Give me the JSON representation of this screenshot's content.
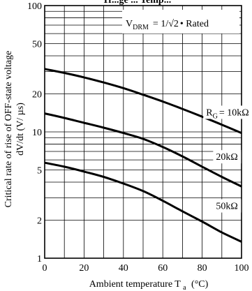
{
  "chart_data": {
    "type": "line",
    "title": "Tr...ge ... Temp...",
    "xlabel": {
      "prefix": "Ambient temperature T",
      "sub": "a",
      "suffix": "(°C)"
    },
    "ylabel": {
      "line1": "Critical rate of rise of OFF-state voltage",
      "line2": "dV/dt   (V/ µs)"
    },
    "xlim": [
      0,
      100
    ],
    "ylim": [
      1,
      100
    ],
    "yscale": "log",
    "x_ticks": [
      "0",
      "20",
      "40",
      "60",
      "80",
      "100"
    ],
    "y_ticks": [
      {
        "value": 1,
        "label": "1"
      },
      {
        "value": 2,
        "label": "2"
      },
      {
        "value": 5,
        "label": "5"
      },
      {
        "value": 10,
        "label": "10"
      },
      {
        "value": 20,
        "label": "20"
      },
      {
        "value": 50,
        "label": "50"
      },
      {
        "value": 100,
        "label": "100"
      }
    ],
    "condition": {
      "prefix": "V",
      "sub": "DRM",
      "middle": "=  1/",
      "radical": "√2",
      "suffix": "• Rated"
    },
    "series": [
      {
        "name": "R_G = 10kΩ",
        "label": {
          "prefix": "R",
          "sub": "G",
          "suffix": "= 10kΩ",
          "at": [
            82,
            13.5
          ]
        },
        "x": [
          0,
          10,
          20,
          30,
          40,
          50,
          60,
          70,
          80,
          90,
          100
        ],
        "values": [
          31.5,
          29.3,
          27.0,
          24.6,
          22.2,
          19.7,
          17.4,
          15.2,
          13.2,
          11.4,
          9.8
        ]
      },
      {
        "name": "20kΩ",
        "label": {
          "prefix": "20kΩ",
          "at": [
            87,
            6.0
          ]
        },
        "x": [
          0,
          10,
          20,
          30,
          40,
          50,
          60,
          70,
          80,
          90,
          100
        ],
        "values": [
          14.0,
          12.9,
          11.8,
          10.8,
          9.8,
          8.8,
          7.6,
          6.4,
          5.3,
          4.4,
          3.7
        ]
      },
      {
        "name": "50kΩ",
        "label": {
          "prefix": "50kΩ",
          "at": [
            87,
            2.45
          ]
        },
        "x": [
          0,
          10,
          20,
          30,
          40,
          50,
          60,
          70,
          80,
          90,
          100
        ],
        "values": [
          5.7,
          5.3,
          4.85,
          4.4,
          3.9,
          3.4,
          2.85,
          2.35,
          1.95,
          1.6,
          1.35
        ]
      }
    ]
  }
}
